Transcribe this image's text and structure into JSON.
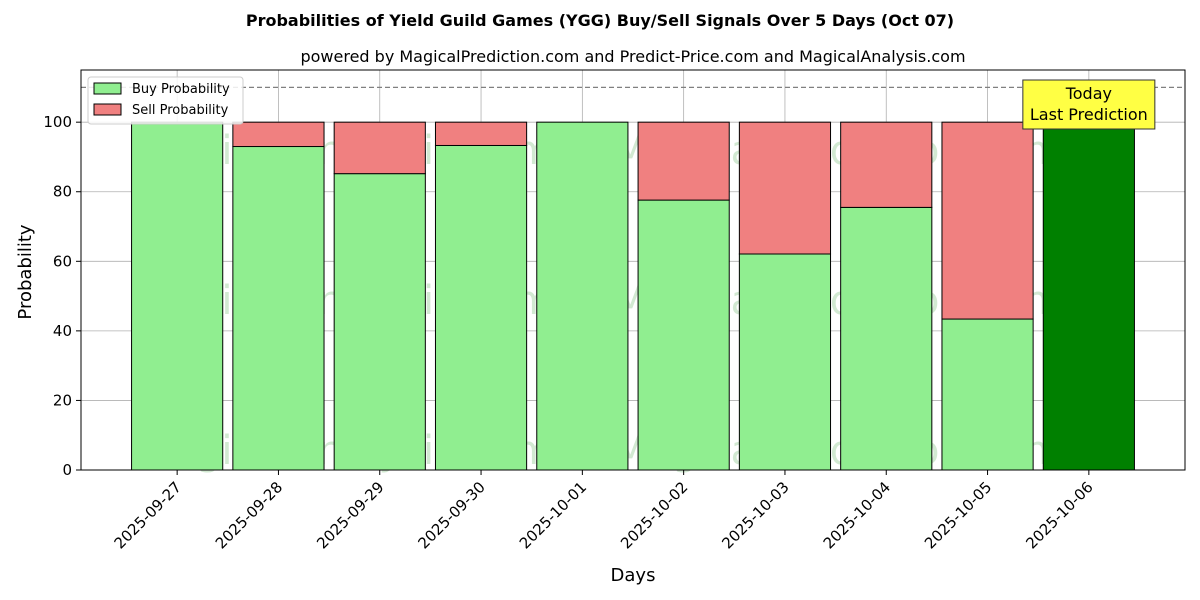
{
  "chart_data": {
    "type": "bar",
    "title": "Probabilities of Yield Guild Games (YGG) Buy/Sell Signals Over 5 Days (Oct 07)",
    "subtitle": "powered by MagicalPrediction.com and Predict-Price.com and MagicalAnalysis.com",
    "xlabel": "Days",
    "ylabel": "Probability",
    "ylim": [
      0,
      115
    ],
    "yticks": [
      0,
      20,
      40,
      60,
      80,
      100
    ],
    "grid": true,
    "stacked": true,
    "legend_position": "top-left",
    "categories": [
      "2025-09-27",
      "2025-09-28",
      "2025-09-29",
      "2025-09-30",
      "2025-10-01",
      "2025-10-02",
      "2025-10-03",
      "2025-10-04",
      "2025-10-05",
      "2025-10-06"
    ],
    "series": [
      {
        "name": "Buy Probability",
        "color": "#90ee90",
        "values": [
          100,
          93,
          85.2,
          93.3,
          100,
          77.6,
          62.1,
          75.5,
          43.4,
          100
        ]
      },
      {
        "name": "Sell Probability",
        "color": "#f08080",
        "values": [
          0,
          7,
          14.8,
          6.7,
          0,
          22.4,
          37.9,
          24.5,
          56.6,
          0
        ]
      }
    ],
    "highlight": {
      "category": "2025-10-06",
      "color": "#008000"
    },
    "reference_line": {
      "y": 110,
      "style": "dashed",
      "color": "#808080"
    },
    "annotation": {
      "lines": [
        "Today",
        "Last Prediction"
      ],
      "background": "#ffff44",
      "attached_to": "2025-10-06"
    },
    "watermarks": [
      "MagicalAnalysis.com",
      "MagicalPrediction.com",
      "MagicalAnalysis.com",
      "MagicalPrediction.com",
      "MagicalAnalysis.com",
      "MagicalPrediction.com"
    ]
  }
}
